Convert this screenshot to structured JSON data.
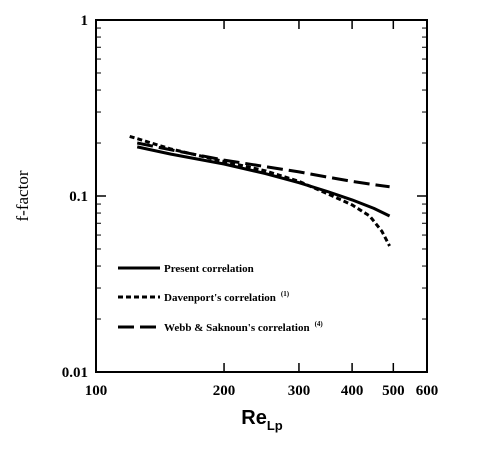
{
  "chart_data": {
    "type": "line",
    "xscale": "log",
    "yscale": "log",
    "xlim": [
      100,
      600
    ],
    "ylim": [
      0.01,
      1
    ],
    "xticks": [
      100,
      200,
      300,
      400,
      500,
      600
    ],
    "xtick_labels": [
      "100",
      "200",
      "300",
      "400",
      "500",
      "600"
    ],
    "yticks": [
      0.01,
      0.1,
      1
    ],
    "ytick_labels": [
      "0.01",
      "0.1",
      "1"
    ],
    "xlabel": {
      "main": "Re",
      "sub": "Lp"
    },
    "ylabel": "f-factor",
    "grid": false,
    "legend_position": "bottom-left",
    "series": [
      {
        "name": "Present correlation",
        "sup": "",
        "style": "solid",
        "x": [
          125,
          150,
          200,
          250,
          300,
          350,
          400,
          450,
          490
        ],
        "y": [
          0.19,
          0.173,
          0.152,
          0.134,
          0.119,
          0.106,
          0.095,
          0.085,
          0.077
        ]
      },
      {
        "name": "Davenport's correlation",
        "sup": "(1)",
        "style": "dashed",
        "x": [
          120,
          150,
          200,
          250,
          300,
          350,
          400,
          440,
          470,
          490
        ],
        "y": [
          0.218,
          0.185,
          0.157,
          0.139,
          0.121,
          0.103,
          0.089,
          0.077,
          0.063,
          0.052
        ]
      },
      {
        "name": "Webb & Saknoun's correlation",
        "sup": "(4)",
        "style": "long-dash",
        "x": [
          125,
          150,
          200,
          250,
          300,
          350,
          400,
          450,
          490
        ],
        "y": [
          0.2,
          0.183,
          0.16,
          0.147,
          0.137,
          0.128,
          0.121,
          0.116,
          0.113
        ]
      }
    ]
  }
}
